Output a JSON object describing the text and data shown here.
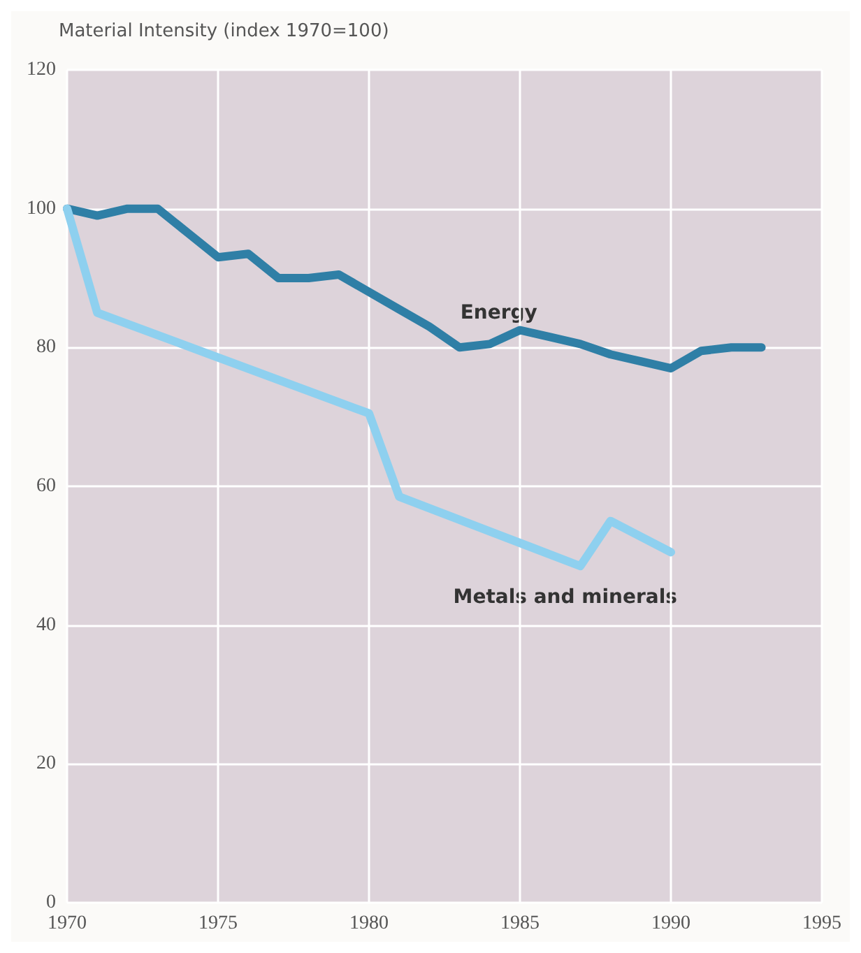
{
  "chart_data": {
    "type": "line",
    "ylabel": "Material Intensity (index 1970=100)",
    "xlim": [
      1970,
      1995
    ],
    "xticks": [
      1970,
      1975,
      1980,
      1985,
      1990,
      1995
    ],
    "ylim": [
      0,
      120
    ],
    "yticks": [
      0,
      20,
      40,
      60,
      80,
      100,
      120
    ],
    "grid": true,
    "legend": false,
    "marker": "none",
    "line_style": "solid",
    "series": [
      {
        "name": "Energy",
        "color": "#2f7fa6",
        "x": [
          1970,
          1971,
          1972,
          1973,
          1974,
          1975,
          1976,
          1977,
          1978,
          1979,
          1980,
          1981,
          1982,
          1983,
          1984,
          1985,
          1986,
          1987,
          1988,
          1989,
          1990,
          1991,
          1992,
          1993
        ],
        "values": [
          100,
          99,
          100,
          100,
          96.5,
          93,
          93.5,
          90,
          90,
          90.5,
          88,
          85.5,
          83,
          80,
          80.5,
          82.5,
          81.5,
          80.5,
          79,
          78,
          77,
          79.5,
          80,
          80
        ]
      },
      {
        "name": "Metals and minerals",
        "color": "#8ed0ef",
        "x": [
          1970,
          1971,
          1980,
          1981,
          1987,
          1988,
          1990
        ],
        "values": [
          100,
          85,
          70.5,
          58.5,
          48.5,
          55,
          50.5
        ]
      }
    ]
  }
}
